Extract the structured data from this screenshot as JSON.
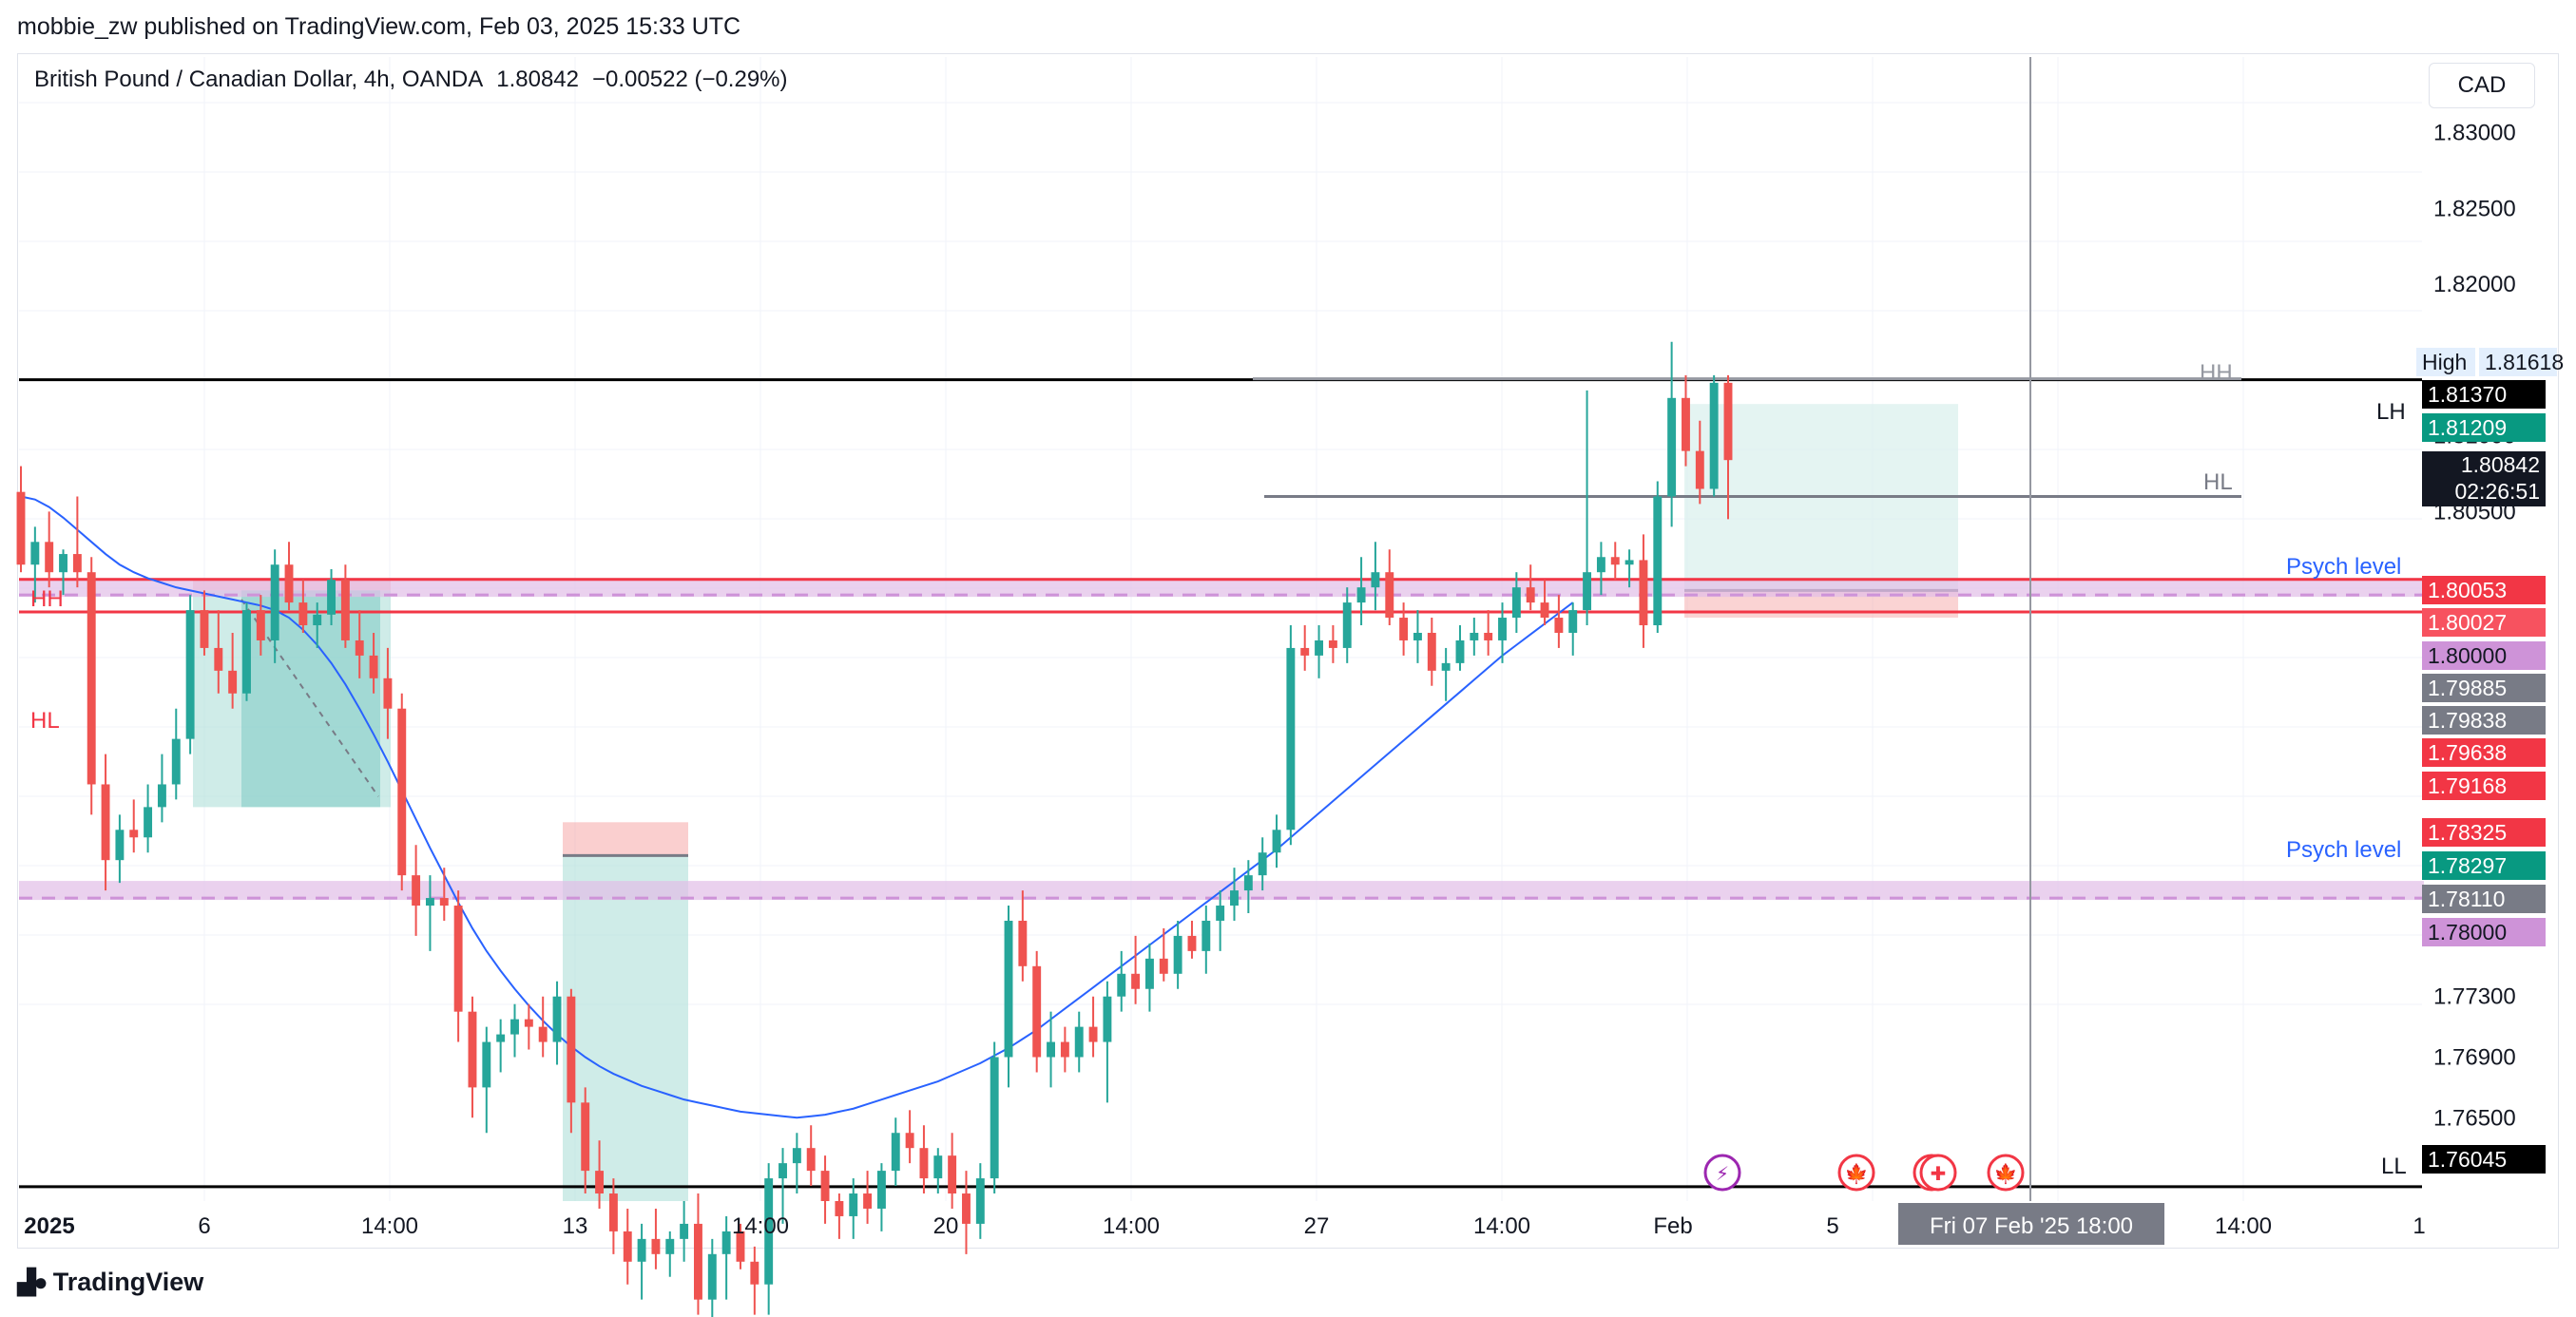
{
  "header": {
    "publisher": "mobbie_zw published on TradingView.com, Feb 03, 2025 15:33 UTC"
  },
  "legend": {
    "symbol": "British Pound / Canadian Dollar, 4h, OANDA",
    "last": "1.80842",
    "change": "−0.00522 (−0.29%)"
  },
  "currency": "CAD",
  "footer": {
    "brand": "TradingView"
  },
  "colors": {
    "up": "#26a69a",
    "down": "#ef5350",
    "ma": "#2962ff",
    "psych_band": "#e1bee7",
    "psych_line": "#ce93d8",
    "red_line": "#f23645",
    "black_line": "#000000",
    "grey_line": "#787b86",
    "axis_text": "#131722",
    "grid": "#f0f3fa"
  },
  "chart_data": {
    "type": "candlestick",
    "symbol": "GBPCAD",
    "timeframe": "4h",
    "y_axis": {
      "range": [
        1.7595,
        1.835
      ],
      "ticks": [
        "1.83000",
        "1.82500",
        "1.82000",
        "1.81000",
        "1.80500",
        "1.77300",
        "1.76900",
        "1.76500"
      ]
    },
    "x_axis": {
      "ticks": [
        "2025",
        "6",
        "14:00",
        "13",
        "14:00",
        "20",
        "14:00",
        "27",
        "14:00",
        "Feb",
        "5",
        "14:00",
        "1"
      ],
      "crosshair_label": "Fri 07 Feb '25   18:00"
    },
    "price_labels": [
      {
        "tag": "High",
        "value": "1.81618",
        "bg": "#e3effd",
        "fg": "#131722"
      },
      {
        "value": "1.81370",
        "bg": "#000000",
        "fg": "#ffffff"
      },
      {
        "value": "1.81209",
        "bg": "#089981",
        "fg": "#ffffff"
      },
      {
        "value": "1.80842",
        "sub": "02:26:51",
        "bg": "#131722",
        "fg": "#ffffff"
      },
      {
        "value": "1.80053",
        "bg": "#f23645",
        "fg": "#ffffff"
      },
      {
        "value": "1.80027",
        "bg": "#f7525f",
        "fg": "#ffffff"
      },
      {
        "value": "1.80000",
        "bg": "#ce93d8",
        "fg": "#131722"
      },
      {
        "value": "1.79885",
        "bg": "#787b86",
        "fg": "#ffffff"
      },
      {
        "value": "1.79838",
        "bg": "#787b86",
        "fg": "#ffffff"
      },
      {
        "value": "1.79638",
        "bg": "#f23645",
        "fg": "#ffffff"
      },
      {
        "value": "1.79168",
        "bg": "#f23645",
        "fg": "#ffffff"
      },
      {
        "value": "1.78325",
        "bg": "#f23645",
        "fg": "#ffffff"
      },
      {
        "value": "1.78297",
        "bg": "#089981",
        "fg": "#ffffff"
      },
      {
        "value": "1.78110",
        "bg": "#787b86",
        "fg": "#ffffff"
      },
      {
        "value": "1.78000",
        "bg": "#ce93d8",
        "fg": "#131722"
      },
      {
        "value": "1.76045",
        "bg": "#000000",
        "fg": "#ffffff"
      }
    ],
    "annotations": {
      "hh_right": "HH",
      "hl_right": "HL",
      "lh": "LH",
      "ll": "LL",
      "hh_left": "HH",
      "hl_left": "HL",
      "psych_upper": "Psych level",
      "psych_lower": "Psych level"
    },
    "levels": {
      "lh_line": 1.8137,
      "ll_line": 1.76045,
      "red_upper": 1.80053,
      "red_lower": 1.79838,
      "psych_upper": 1.8,
      "psych_lower": 1.78,
      "hh_grey": 1.8137,
      "hl_grey": 1.806
    },
    "candles": [
      {
        "o": 1.8063,
        "h": 1.808,
        "l": 1.801,
        "c": 1.8015
      },
      {
        "o": 1.8015,
        "h": 1.804,
        "l": 1.799,
        "c": 1.803
      },
      {
        "o": 1.803,
        "h": 1.805,
        "l": 1.8,
        "c": 1.801
      },
      {
        "o": 1.801,
        "h": 1.8025,
        "l": 1.7995,
        "c": 1.8022
      },
      {
        "o": 1.8022,
        "h": 1.806,
        "l": 1.8,
        "c": 1.801
      },
      {
        "o": 1.801,
        "h": 1.802,
        "l": 1.785,
        "c": 1.787
      },
      {
        "o": 1.787,
        "h": 1.789,
        "l": 1.78,
        "c": 1.782
      },
      {
        "o": 1.782,
        "h": 1.785,
        "l": 1.7805,
        "c": 1.784
      },
      {
        "o": 1.784,
        "h": 1.786,
        "l": 1.7825,
        "c": 1.7835
      },
      {
        "o": 1.7835,
        "h": 1.787,
        "l": 1.7825,
        "c": 1.7855
      },
      {
        "o": 1.7855,
        "h": 1.789,
        "l": 1.7845,
        "c": 1.787
      },
      {
        "o": 1.787,
        "h": 1.792,
        "l": 1.786,
        "c": 1.79
      },
      {
        "o": 1.79,
        "h": 1.7995,
        "l": 1.789,
        "c": 1.7985
      },
      {
        "o": 1.7985,
        "h": 1.7998,
        "l": 1.7955,
        "c": 1.796
      },
      {
        "o": 1.796,
        "h": 1.7985,
        "l": 1.793,
        "c": 1.7945
      },
      {
        "o": 1.7945,
        "h": 1.797,
        "l": 1.792,
        "c": 1.793
      },
      {
        "o": 1.793,
        "h": 1.799,
        "l": 1.7925,
        "c": 1.7985
      },
      {
        "o": 1.7985,
        "h": 1.7995,
        "l": 1.7955,
        "c": 1.7965
      },
      {
        "o": 1.7965,
        "h": 1.8025,
        "l": 1.795,
        "c": 1.8015
      },
      {
        "o": 1.8015,
        "h": 1.803,
        "l": 1.7985,
        "c": 1.799
      },
      {
        "o": 1.799,
        "h": 1.8005,
        "l": 1.797,
        "c": 1.7975
      },
      {
        "o": 1.7975,
        "h": 1.799,
        "l": 1.796,
        "c": 1.7982
      },
      {
        "o": 1.7982,
        "h": 1.8012,
        "l": 1.7975,
        "c": 1.8005
      },
      {
        "o": 1.8005,
        "h": 1.8015,
        "l": 1.796,
        "c": 1.7965
      },
      {
        "o": 1.7965,
        "h": 1.7985,
        "l": 1.794,
        "c": 1.7955
      },
      {
        "o": 1.7955,
        "h": 1.797,
        "l": 1.793,
        "c": 1.794
      },
      {
        "o": 1.794,
        "h": 1.796,
        "l": 1.79,
        "c": 1.792
      },
      {
        "o": 1.792,
        "h": 1.793,
        "l": 1.78,
        "c": 1.781
      },
      {
        "o": 1.781,
        "h": 1.783,
        "l": 1.777,
        "c": 1.779
      },
      {
        "o": 1.779,
        "h": 1.781,
        "l": 1.776,
        "c": 1.7795
      },
      {
        "o": 1.7795,
        "h": 1.7815,
        "l": 1.778,
        "c": 1.779
      },
      {
        "o": 1.779,
        "h": 1.78,
        "l": 1.77,
        "c": 1.772
      },
      {
        "o": 1.772,
        "h": 1.773,
        "l": 1.765,
        "c": 1.767
      },
      {
        "o": 1.767,
        "h": 1.771,
        "l": 1.764,
        "c": 1.77
      },
      {
        "o": 1.77,
        "h": 1.7715,
        "l": 1.768,
        "c": 1.7705
      },
      {
        "o": 1.7705,
        "h": 1.7725,
        "l": 1.769,
        "c": 1.7715
      },
      {
        "o": 1.7715,
        "h": 1.7725,
        "l": 1.7695,
        "c": 1.771
      },
      {
        "o": 1.771,
        "h": 1.773,
        "l": 1.769,
        "c": 1.77
      },
      {
        "o": 1.77,
        "h": 1.774,
        "l": 1.7685,
        "c": 1.773
      },
      {
        "o": 1.773,
        "h": 1.7735,
        "l": 1.764,
        "c": 1.766
      },
      {
        "o": 1.766,
        "h": 1.767,
        "l": 1.76,
        "c": 1.7615
      },
      {
        "o": 1.7615,
        "h": 1.7635,
        "l": 1.759,
        "c": 1.76
      },
      {
        "o": 1.76,
        "h": 1.761,
        "l": 1.756,
        "c": 1.7575
      },
      {
        "o": 1.7575,
        "h": 1.759,
        "l": 1.754,
        "c": 1.7555
      },
      {
        "o": 1.7555,
        "h": 1.758,
        "l": 1.753,
        "c": 1.757
      },
      {
        "o": 1.757,
        "h": 1.759,
        "l": 1.755,
        "c": 1.756
      },
      {
        "o": 1.756,
        "h": 1.7575,
        "l": 1.7545,
        "c": 1.757
      },
      {
        "o": 1.757,
        "h": 1.7595,
        "l": 1.7555,
        "c": 1.758
      },
      {
        "o": 1.758,
        "h": 1.76,
        "l": 1.752,
        "c": 1.753
      },
      {
        "o": 1.753,
        "h": 1.757,
        "l": 1.751,
        "c": 1.756
      },
      {
        "o": 1.756,
        "h": 1.7585,
        "l": 1.753,
        "c": 1.7575
      },
      {
        "o": 1.7575,
        "h": 1.758,
        "l": 1.755,
        "c": 1.7555
      },
      {
        "o": 1.7555,
        "h": 1.7565,
        "l": 1.752,
        "c": 1.754
      },
      {
        "o": 1.754,
        "h": 1.762,
        "l": 1.752,
        "c": 1.761
      },
      {
        "o": 1.761,
        "h": 1.763,
        "l": 1.758,
        "c": 1.762
      },
      {
        "o": 1.762,
        "h": 1.764,
        "l": 1.76,
        "c": 1.763
      },
      {
        "o": 1.763,
        "h": 1.7645,
        "l": 1.7605,
        "c": 1.7615
      },
      {
        "o": 1.7615,
        "h": 1.7625,
        "l": 1.758,
        "c": 1.7595
      },
      {
        "o": 1.7595,
        "h": 1.76,
        "l": 1.757,
        "c": 1.7585
      },
      {
        "o": 1.7585,
        "h": 1.761,
        "l": 1.757,
        "c": 1.76
      },
      {
        "o": 1.76,
        "h": 1.7615,
        "l": 1.758,
        "c": 1.759
      },
      {
        "o": 1.759,
        "h": 1.762,
        "l": 1.7575,
        "c": 1.7615
      },
      {
        "o": 1.7615,
        "h": 1.765,
        "l": 1.7605,
        "c": 1.764
      },
      {
        "o": 1.764,
        "h": 1.7655,
        "l": 1.762,
        "c": 1.763
      },
      {
        "o": 1.763,
        "h": 1.7645,
        "l": 1.76,
        "c": 1.761
      },
      {
        "o": 1.761,
        "h": 1.763,
        "l": 1.76,
        "c": 1.7625
      },
      {
        "o": 1.7625,
        "h": 1.764,
        "l": 1.759,
        "c": 1.76
      },
      {
        "o": 1.76,
        "h": 1.7615,
        "l": 1.756,
        "c": 1.758
      },
      {
        "o": 1.758,
        "h": 1.762,
        "l": 1.757,
        "c": 1.761
      },
      {
        "o": 1.761,
        "h": 1.77,
        "l": 1.76,
        "c": 1.769
      },
      {
        "o": 1.769,
        "h": 1.779,
        "l": 1.767,
        "c": 1.778
      },
      {
        "o": 1.778,
        "h": 1.78,
        "l": 1.774,
        "c": 1.775
      },
      {
        "o": 1.775,
        "h": 1.776,
        "l": 1.768,
        "c": 1.769
      },
      {
        "o": 1.769,
        "h": 1.772,
        "l": 1.767,
        "c": 1.77
      },
      {
        "o": 1.77,
        "h": 1.771,
        "l": 1.768,
        "c": 1.769
      },
      {
        "o": 1.769,
        "h": 1.772,
        "l": 1.768,
        "c": 1.771
      },
      {
        "o": 1.771,
        "h": 1.773,
        "l": 1.769,
        "c": 1.77
      },
      {
        "o": 1.77,
        "h": 1.774,
        "l": 1.766,
        "c": 1.773
      },
      {
        "o": 1.773,
        "h": 1.776,
        "l": 1.772,
        "c": 1.7745
      },
      {
        "o": 1.7745,
        "h": 1.777,
        "l": 1.7725,
        "c": 1.7735
      },
      {
        "o": 1.7735,
        "h": 1.7765,
        "l": 1.772,
        "c": 1.7755
      },
      {
        "o": 1.7755,
        "h": 1.7775,
        "l": 1.774,
        "c": 1.7745
      },
      {
        "o": 1.7745,
        "h": 1.778,
        "l": 1.7735,
        "c": 1.777
      },
      {
        "o": 1.777,
        "h": 1.778,
        "l": 1.7755,
        "c": 1.776
      },
      {
        "o": 1.776,
        "h": 1.779,
        "l": 1.7745,
        "c": 1.778
      },
      {
        "o": 1.778,
        "h": 1.78,
        "l": 1.776,
        "c": 1.779
      },
      {
        "o": 1.779,
        "h": 1.7815,
        "l": 1.778,
        "c": 1.78
      },
      {
        "o": 1.78,
        "h": 1.782,
        "l": 1.7785,
        "c": 1.781
      },
      {
        "o": 1.781,
        "h": 1.7835,
        "l": 1.78,
        "c": 1.7825
      },
      {
        "o": 1.7825,
        "h": 1.785,
        "l": 1.7815,
        "c": 1.784
      },
      {
        "o": 1.784,
        "h": 1.7975,
        "l": 1.783,
        "c": 1.796
      },
      {
        "o": 1.796,
        "h": 1.7975,
        "l": 1.7945,
        "c": 1.7955
      },
      {
        "o": 1.7955,
        "h": 1.7975,
        "l": 1.794,
        "c": 1.7965
      },
      {
        "o": 1.7965,
        "h": 1.7975,
        "l": 1.795,
        "c": 1.796
      },
      {
        "o": 1.796,
        "h": 1.8,
        "l": 1.795,
        "c": 1.799
      },
      {
        "o": 1.799,
        "h": 1.802,
        "l": 1.7975,
        "c": 1.8
      },
      {
        "o": 1.8,
        "h": 1.803,
        "l": 1.7985,
        "c": 1.801
      },
      {
        "o": 1.801,
        "h": 1.8025,
        "l": 1.7975,
        "c": 1.798
      },
      {
        "o": 1.798,
        "h": 1.799,
        "l": 1.7955,
        "c": 1.7965
      },
      {
        "o": 1.7965,
        "h": 1.7985,
        "l": 1.795,
        "c": 1.797
      },
      {
        "o": 1.797,
        "h": 1.798,
        "l": 1.7935,
        "c": 1.7945
      },
      {
        "o": 1.7945,
        "h": 1.796,
        "l": 1.7925,
        "c": 1.795
      },
      {
        "o": 1.795,
        "h": 1.7975,
        "l": 1.7945,
        "c": 1.7965
      },
      {
        "o": 1.7965,
        "h": 1.798,
        "l": 1.7955,
        "c": 1.797
      },
      {
        "o": 1.797,
        "h": 1.7985,
        "l": 1.7955,
        "c": 1.7965
      },
      {
        "o": 1.7965,
        "h": 1.799,
        "l": 1.795,
        "c": 1.798
      },
      {
        "o": 1.798,
        "h": 1.801,
        "l": 1.797,
        "c": 1.8
      },
      {
        "o": 1.8,
        "h": 1.8015,
        "l": 1.7985,
        "c": 1.799
      },
      {
        "o": 1.799,
        "h": 1.8005,
        "l": 1.7975,
        "c": 1.798
      },
      {
        "o": 1.798,
        "h": 1.7995,
        "l": 1.796,
        "c": 1.797
      },
      {
        "o": 1.797,
        "h": 1.799,
        "l": 1.7955,
        "c": 1.7985
      },
      {
        "o": 1.7985,
        "h": 1.813,
        "l": 1.7975,
        "c": 1.801
      },
      {
        "o": 1.801,
        "h": 1.803,
        "l": 1.7995,
        "c": 1.802
      },
      {
        "o": 1.802,
        "h": 1.803,
        "l": 1.8005,
        "c": 1.8015
      },
      {
        "o": 1.8015,
        "h": 1.8025,
        "l": 1.8,
        "c": 1.8018
      },
      {
        "o": 1.8018,
        "h": 1.8035,
        "l": 1.796,
        "c": 1.7975
      },
      {
        "o": 1.7975,
        "h": 1.807,
        "l": 1.797,
        "c": 1.806
      },
      {
        "o": 1.806,
        "h": 1.8162,
        "l": 1.804,
        "c": 1.8125
      },
      {
        "o": 1.8125,
        "h": 1.814,
        "l": 1.808,
        "c": 1.809
      },
      {
        "o": 1.809,
        "h": 1.811,
        "l": 1.8055,
        "c": 1.8065
      },
      {
        "o": 1.8065,
        "h": 1.814,
        "l": 1.806,
        "c": 1.8135
      },
      {
        "o": 1.8135,
        "h": 1.814,
        "l": 1.8045,
        "c": 1.8084
      }
    ],
    "ma": [
      1.806,
      1.8058,
      1.8053,
      1.8046,
      1.8038,
      1.803,
      1.8022,
      1.8015,
      1.801,
      1.8006,
      1.8003,
      1.8,
      1.7998,
      1.7996,
      1.7994,
      1.7992,
      1.799,
      1.7988,
      1.7985,
      1.798,
      1.7972,
      1.7962,
      1.795,
      1.7936,
      1.792,
      1.7903,
      1.7885,
      1.7866,
      1.7847,
      1.7828,
      1.781,
      1.7792,
      1.7775,
      1.776,
      1.7747,
      1.7735,
      1.7724,
      1.7714,
      1.7705,
      1.7697,
      1.769,
      1.7684,
      1.7679,
      1.7675,
      1.7671,
      1.7668,
      1.7665,
      1.7662,
      1.766,
      1.7658,
      1.7656,
      1.7654,
      1.7653,
      1.7652,
      1.7651,
      1.765,
      1.7651,
      1.7652,
      1.7654,
      1.7656,
      1.7659,
      1.7662,
      1.7665,
      1.7668,
      1.7671,
      1.7674,
      1.7678,
      1.7682,
      1.7686,
      1.7691,
      1.7696,
      1.7702,
      1.7708,
      1.7715,
      1.7722,
      1.7729,
      1.7736,
      1.7743,
      1.775,
      1.7757,
      1.7764,
      1.7771,
      1.7778,
      1.7785,
      1.7792,
      1.7799,
      1.7806,
      1.7813,
      1.782,
      1.7827,
      1.7835,
      1.7843,
      1.7851,
      1.7859,
      1.7867,
      1.7875,
      1.7883,
      1.7891,
      1.7899,
      1.7907,
      1.7915,
      1.7923,
      1.7931,
      1.7939,
      1.7947,
      1.7955,
      1.7962,
      1.7969,
      1.7976,
      1.7983,
      1.799
    ]
  }
}
